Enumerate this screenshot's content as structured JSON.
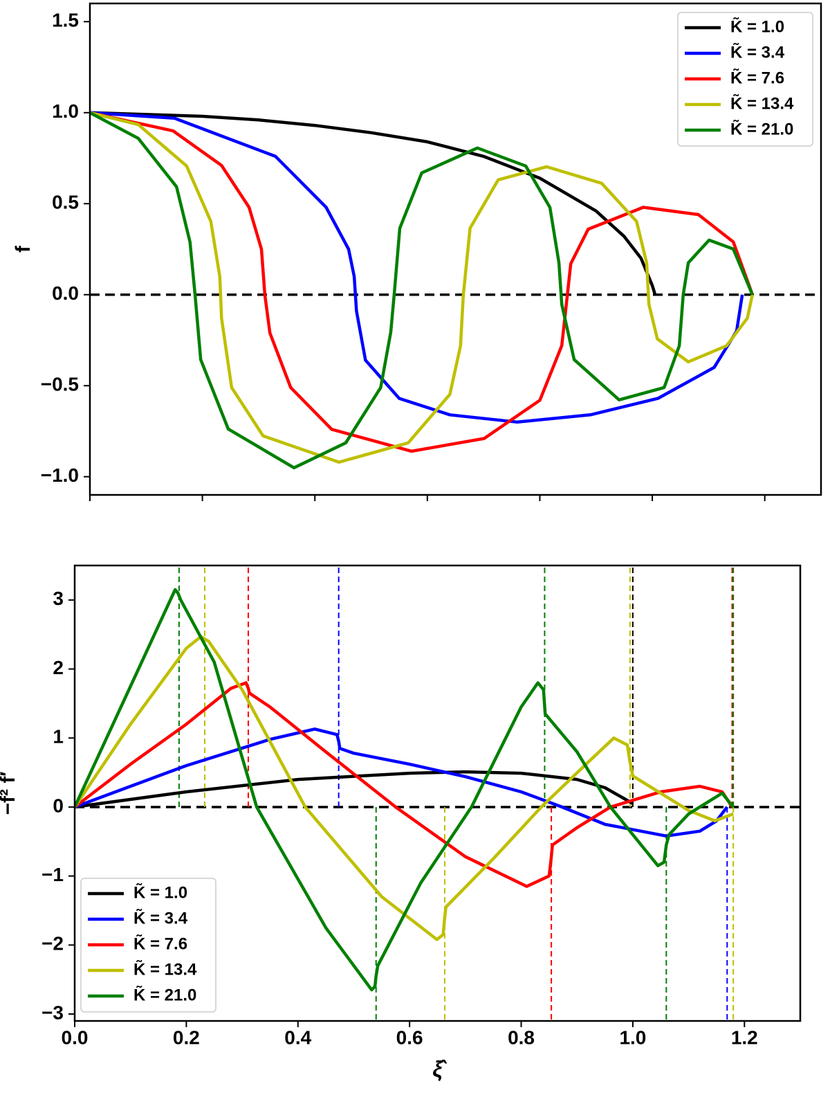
{
  "chart_data": [
    {
      "type": "line",
      "ylabel": "f",
      "xlim": [
        0,
        1.3
      ],
      "ylim": [
        -1.1,
        1.6
      ],
      "xticks": [
        0,
        0.2,
        0.4,
        0.6,
        0.8,
        1.0,
        1.2
      ],
      "xticklabels": false,
      "yticks": [
        {
          "value": -1.0,
          "label": "−1.0"
        },
        {
          "value": -0.5,
          "label": "−0.5"
        },
        {
          "value": 0.0,
          "label": "0.0"
        },
        {
          "value": 0.5,
          "label": "0.5"
        },
        {
          "value": 1.0,
          "label": "1.0"
        },
        {
          "value": 1.5,
          "label": "1.5"
        }
      ],
      "hline": 0,
      "legend": "upper right",
      "series": [
        {
          "name": "K̃ = 1.0",
          "color": "#000000",
          "x": [
            0,
            0.1,
            0.2,
            0.3,
            0.4,
            0.5,
            0.6,
            0.7,
            0.8,
            0.9,
            0.95,
            0.98,
            1.0,
            1.005
          ],
          "values": [
            1,
            0.99,
            0.98,
            0.96,
            0.93,
            0.89,
            0.84,
            0.76,
            0.64,
            0.46,
            0.32,
            0.2,
            0.05,
            0
          ]
        },
        {
          "name": "K̃ = 3.4",
          "color": "#0000ff",
          "x": [
            0,
            0.15,
            0.33,
            0.42,
            0.46,
            0.47,
            0.474,
            0.49,
            0.55,
            0.64,
            0.76,
            0.89,
            1.01,
            1.11,
            1.15,
            1.16
          ],
          "values": [
            1,
            0.97,
            0.76,
            0.48,
            0.25,
            0.1,
            -0.09,
            -0.36,
            -0.57,
            -0.66,
            -0.7,
            -0.66,
            -0.57,
            -0.4,
            -0.2,
            0
          ]
        },
        {
          "name": "K̃ = 7.6",
          "color": "#ff0000",
          "x": [
            0,
            0.148,
            0.234,
            0.283,
            0.305,
            0.311,
            0.32,
            0.357,
            0.43,
            0.572,
            0.701,
            0.8,
            0.839,
            0.849,
            0.855,
            0.886,
            0.984,
            1.082,
            1.144,
            1.178
          ],
          "values": [
            1,
            0.9,
            0.71,
            0.48,
            0.25,
            0,
            -0.21,
            -0.51,
            -0.74,
            -0.86,
            -0.79,
            -0.58,
            -0.28,
            0,
            0.17,
            0.36,
            0.48,
            0.44,
            0.29,
            0
          ]
        },
        {
          "name": "K̃ = 13.4",
          "color": "#bfbf00",
          "x": [
            0,
            0.086,
            0.172,
            0.215,
            0.231,
            0.234,
            0.252,
            0.308,
            0.443,
            0.566,
            0.64,
            0.659,
            0.664,
            0.676,
            0.726,
            0.812,
            0.91,
            0.972,
            0.99,
            0.994,
            1.009,
            1.064,
            1.132,
            1.169,
            1.178
          ],
          "values": [
            1,
            0.935,
            0.707,
            0.403,
            0.099,
            -0.129,
            -0.51,
            -0.776,
            -0.92,
            -0.814,
            -0.548,
            -0.281,
            0,
            0.365,
            0.631,
            0.703,
            0.612,
            0.403,
            0.175,
            -0.053,
            -0.243,
            -0.369,
            -0.281,
            -0.129,
            0
          ]
        },
        {
          "name": "K̃ = 21.0",
          "color": "#008000",
          "x": [
            0,
            0.086,
            0.154,
            0.178,
            0.187,
            0.197,
            0.246,
            0.363,
            0.455,
            0.517,
            0.535,
            0.541,
            0.551,
            0.59,
            0.689,
            0.775,
            0.818,
            0.834,
            0.839,
            0.861,
            0.941,
            1.021,
            1.048,
            1.055,
            1.064,
            1.101,
            1.144,
            1.178
          ],
          "values": [
            1,
            0.859,
            0.593,
            0.289,
            0,
            -0.357,
            -0.738,
            -0.951,
            -0.814,
            -0.51,
            -0.205,
            0,
            0.365,
            0.669,
            0.806,
            0.707,
            0.479,
            0.175,
            -0.053,
            -0.357,
            -0.578,
            -0.51,
            -0.281,
            0,
            0.175,
            0.3,
            0.251,
            0
          ]
        }
      ]
    },
    {
      "type": "line",
      "ylabel": "−f² f′",
      "xlabel": "ξ̂",
      "xlim": [
        0,
        1.3
      ],
      "ylim": [
        -3.1,
        3.5
      ],
      "xticks": [
        {
          "value": 0.0,
          "label": "0.0"
        },
        0.2,
        0.4,
        0.6,
        0.8,
        {
          "value": 1.0,
          "label": "1.0"
        },
        1.2
      ],
      "xticklabels": true,
      "yticks": [
        {
          "value": -3,
          "label": "−3"
        },
        {
          "value": -2,
          "label": "−2"
        },
        {
          "value": -1,
          "label": "−1"
        },
        0,
        1,
        2,
        3
      ],
      "hline": 0,
      "legend": "lower left",
      "series": [
        {
          "name": "K̃ = 1.0",
          "color": "#000000",
          "x": [
            0,
            0.2,
            0.4,
            0.6,
            0.7,
            0.8,
            0.9,
            0.95,
            0.985,
            1.0
          ],
          "values": [
            0,
            0.22,
            0.4,
            0.49,
            0.51,
            0.49,
            0.4,
            0.28,
            0.12,
            0.05
          ],
          "roots_up": [
            1.0
          ],
          "roots_down": []
        },
        {
          "name": "K̃ = 3.4",
          "color": "#0000ff",
          "x": [
            0,
            0.2,
            0.35,
            0.43,
            0.47,
            0.473,
            0.475,
            0.5,
            0.6,
            0.7,
            0.8,
            0.873,
            0.95,
            1.06,
            1.12,
            1.15,
            1.169
          ],
          "values": [
            0,
            0.6,
            0.98,
            1.13,
            1.05,
            0.95,
            0.85,
            0.78,
            0.62,
            0.44,
            0.22,
            0,
            -0.25,
            -0.42,
            -0.35,
            -0.2,
            0
          ],
          "roots_up": [
            0.473
          ],
          "roots_down": [
            1.169
          ]
        },
        {
          "name": "K̃ = 7.6",
          "color": "#ff0000",
          "x": [
            0,
            0.1,
            0.2,
            0.28,
            0.307,
            0.311,
            0.313,
            0.35,
            0.45,
            0.575,
            0.7,
            0.81,
            0.85,
            0.853,
            0.856,
            0.9,
            0.96,
            1.05,
            1.12,
            1.16,
            1.178
          ],
          "values": [
            0,
            0.62,
            1.2,
            1.72,
            1.8,
            1.72,
            1.65,
            1.45,
            0.8,
            0,
            -0.72,
            -1.15,
            -1.0,
            -0.8,
            -0.55,
            -0.3,
            0,
            0.22,
            0.3,
            0.22,
            0
          ],
          "roots_up": [
            0.311,
            1.178
          ],
          "roots_down": [
            0.854
          ]
        },
        {
          "name": "K̃ = 13.4",
          "color": "#bfbf00",
          "x": [
            0,
            0.1,
            0.2,
            0.226,
            0.24,
            0.3,
            0.413,
            0.55,
            0.649,
            0.66,
            0.663,
            0.665,
            0.75,
            0.836,
            0.92,
            0.966,
            0.99,
            0.995,
            1.0,
            1.05,
            1.1,
            1.147,
            1.18
          ],
          "values": [
            0,
            1.2,
            2.3,
            2.47,
            2.4,
            1.7,
            0,
            -1.3,
            -1.92,
            -1.85,
            -1.6,
            -1.45,
            -0.75,
            0,
            0.65,
            1.0,
            0.9,
            0.65,
            0.45,
            0.2,
            -0.05,
            -0.2,
            -0.1
          ],
          "roots_up": [
            0.233,
            0.995
          ],
          "roots_down": [
            0.663,
            1.18
          ]
        },
        {
          "name": "K̃ = 21.0",
          "color": "#008000",
          "x": [
            0,
            0.1,
            0.18,
            0.185,
            0.19,
            0.25,
            0.326,
            0.45,
            0.532,
            0.538,
            0.54,
            0.543,
            0.62,
            0.711,
            0.8,
            0.83,
            0.84,
            0.843,
            0.9,
            0.96,
            1.045,
            1.056,
            1.06,
            1.065,
            1.1,
            1.16,
            1.18
          ],
          "values": [
            0,
            1.75,
            3.15,
            3.1,
            3.0,
            2.1,
            0,
            -1.75,
            -2.65,
            -2.6,
            -2.45,
            -2.3,
            -1.1,
            0,
            1.45,
            1.8,
            1.7,
            1.35,
            0.8,
            0,
            -0.85,
            -0.8,
            -0.55,
            -0.4,
            -0.1,
            0.2,
            0
          ],
          "roots_up": [
            0.187,
            0.842,
            1.18
          ],
          "roots_down": [
            0.54,
            1.06
          ]
        }
      ]
    }
  ]
}
